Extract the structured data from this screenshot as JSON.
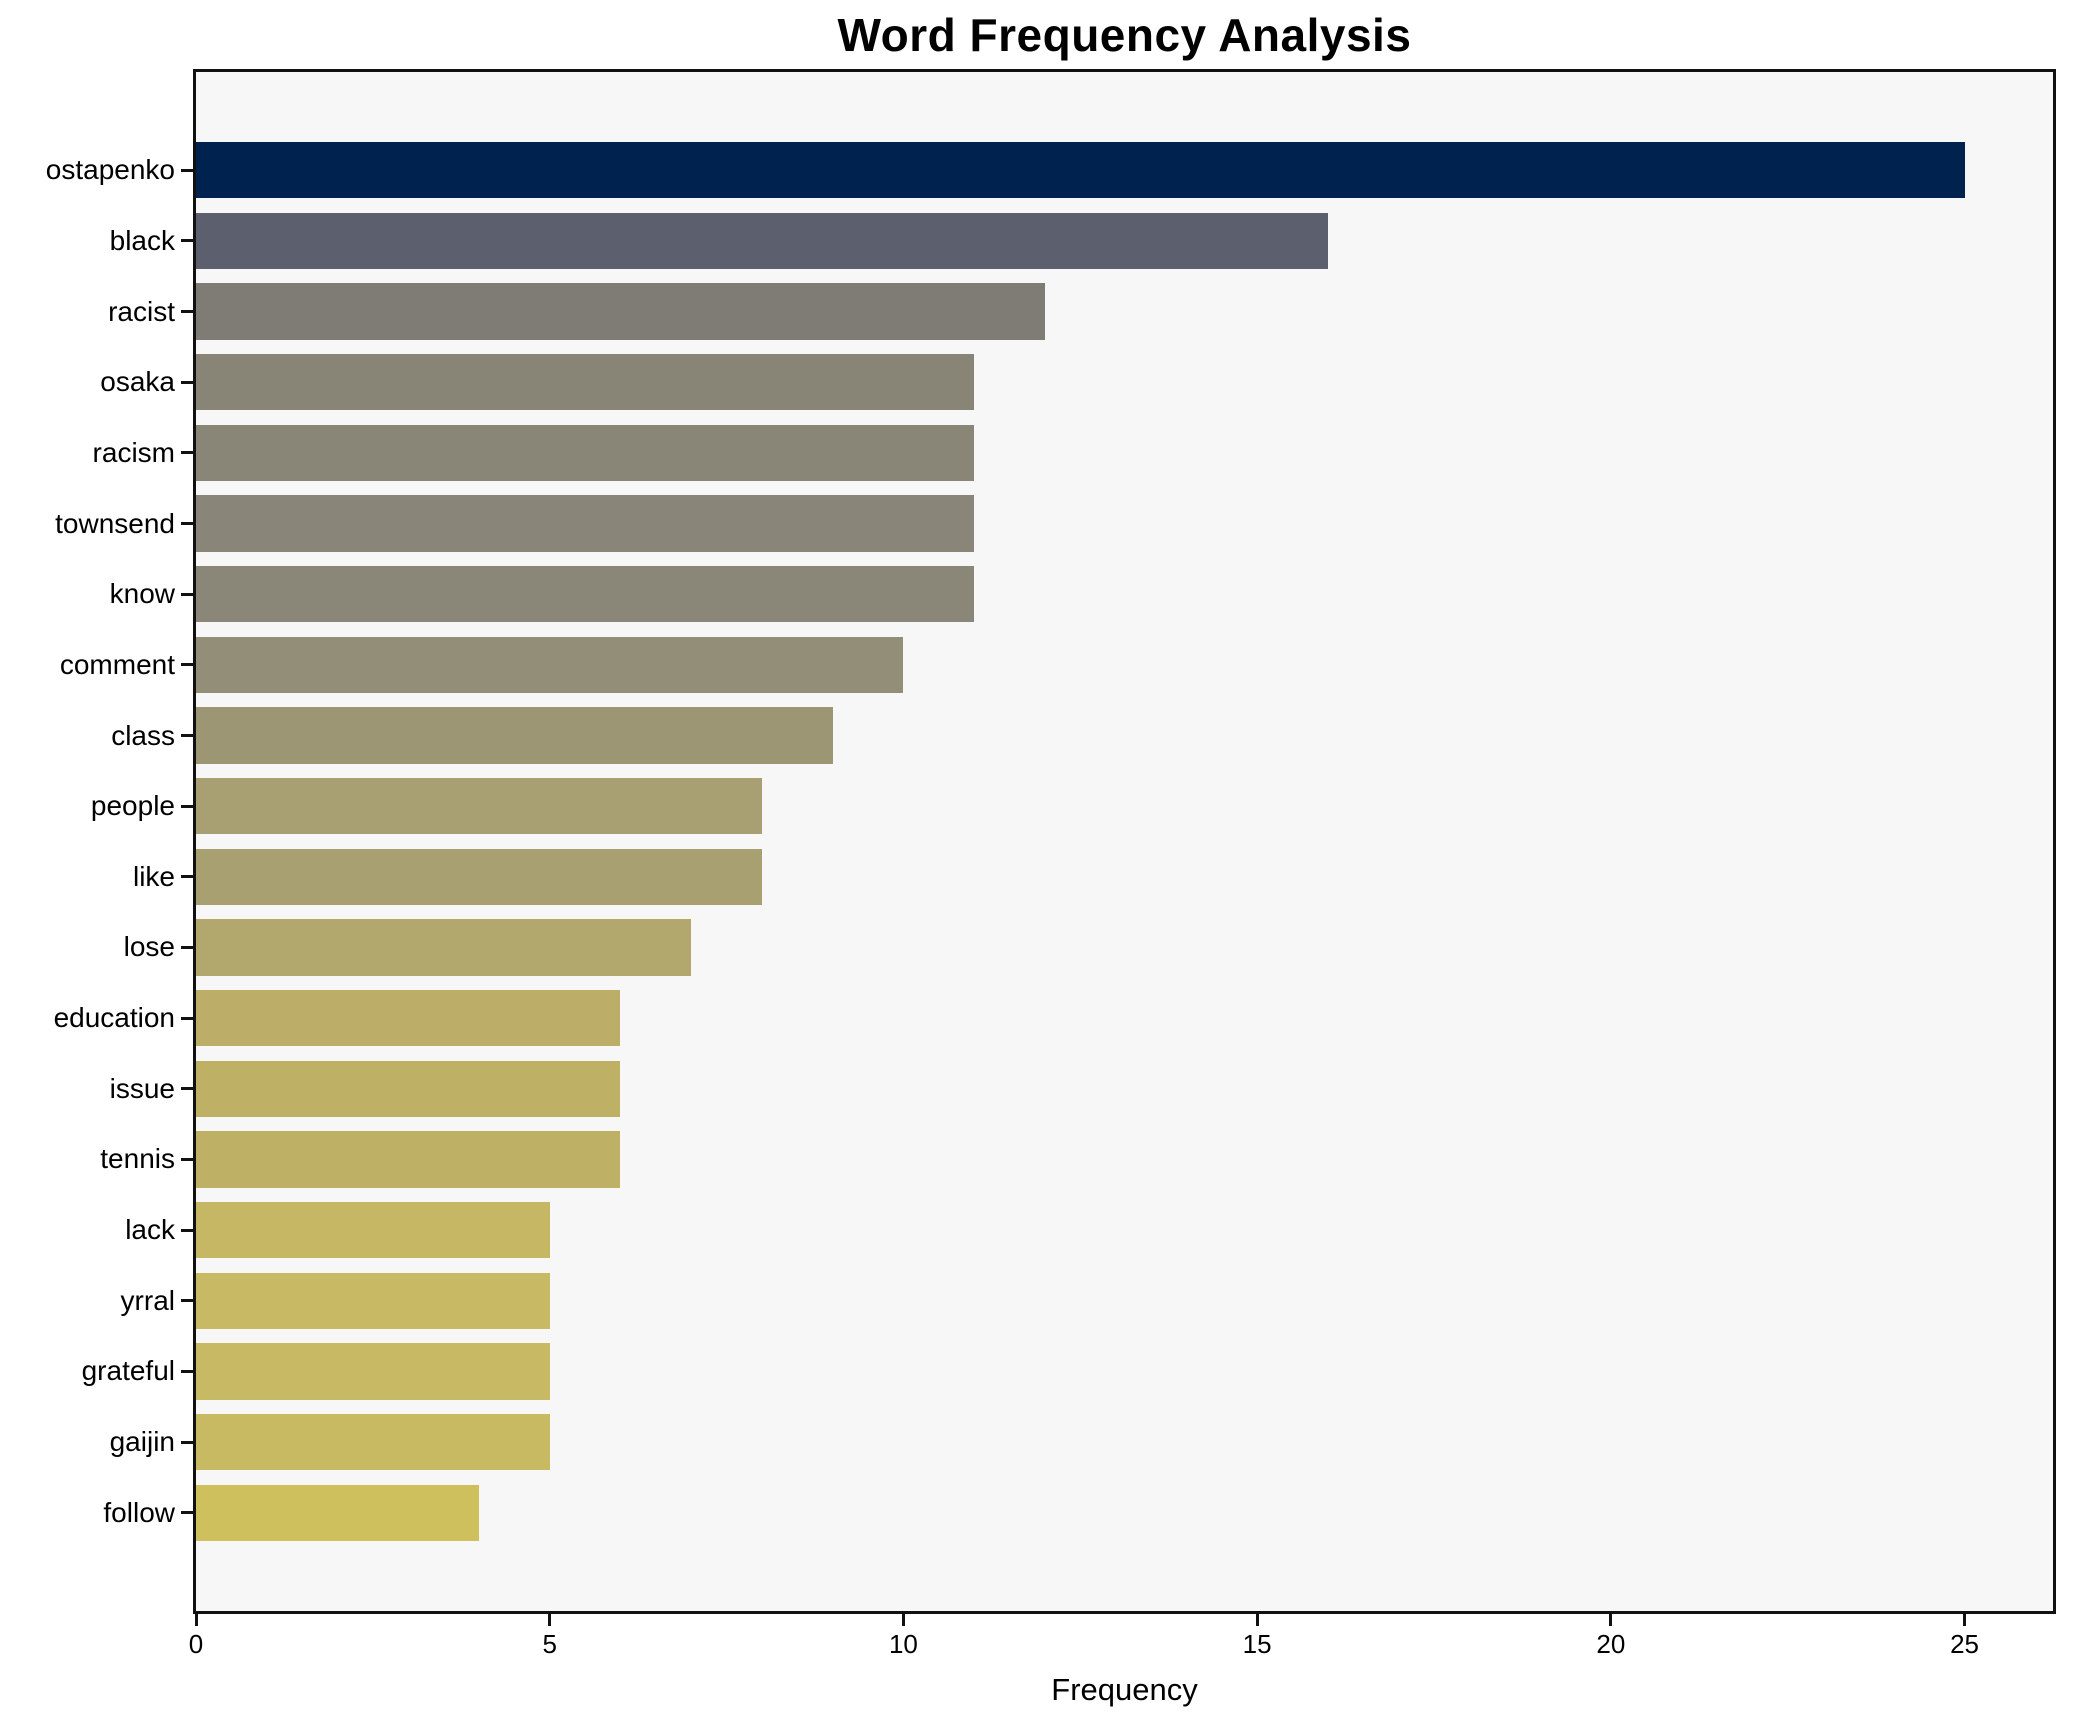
{
  "chart_data": {
    "type": "bar",
    "orientation": "horizontal",
    "title": "Word Frequency Analysis",
    "xlabel": "Frequency",
    "ylabel": "",
    "categories": [
      "ostapenko",
      "black",
      "racist",
      "osaka",
      "racism",
      "townsend",
      "know",
      "comment",
      "class",
      "people",
      "like",
      "lose",
      "education",
      "issue",
      "tennis",
      "lack",
      "yrral",
      "grateful",
      "gaijin",
      "follow"
    ],
    "values": [
      25,
      16,
      12,
      11,
      11,
      11,
      11,
      10,
      9,
      8,
      8,
      7,
      6,
      6,
      6,
      5,
      5,
      5,
      5,
      4
    ],
    "bar_colors": [
      "#00224e",
      "#5c5f6e",
      "#7f7c75",
      "#888577",
      "#898678",
      "#898578",
      "#8a8678",
      "#938e78",
      "#9d9674",
      "#a89f72",
      "#a9a072",
      "#b2a76c",
      "#bcae68",
      "#beb166",
      "#beb166",
      "#c5b763",
      "#c8b964",
      "#c8b964",
      "#c8b963",
      "#cfc05e"
    ],
    "xlim": [
      0,
      26.25
    ],
    "x_ticks": [
      0,
      5,
      10,
      15,
      20,
      25
    ],
    "grid": false,
    "legend": null,
    "plot_background": "#f7f7f8",
    "figure_background": "#ffffff",
    "spine_color": "#111111",
    "text_color": "#000000"
  }
}
